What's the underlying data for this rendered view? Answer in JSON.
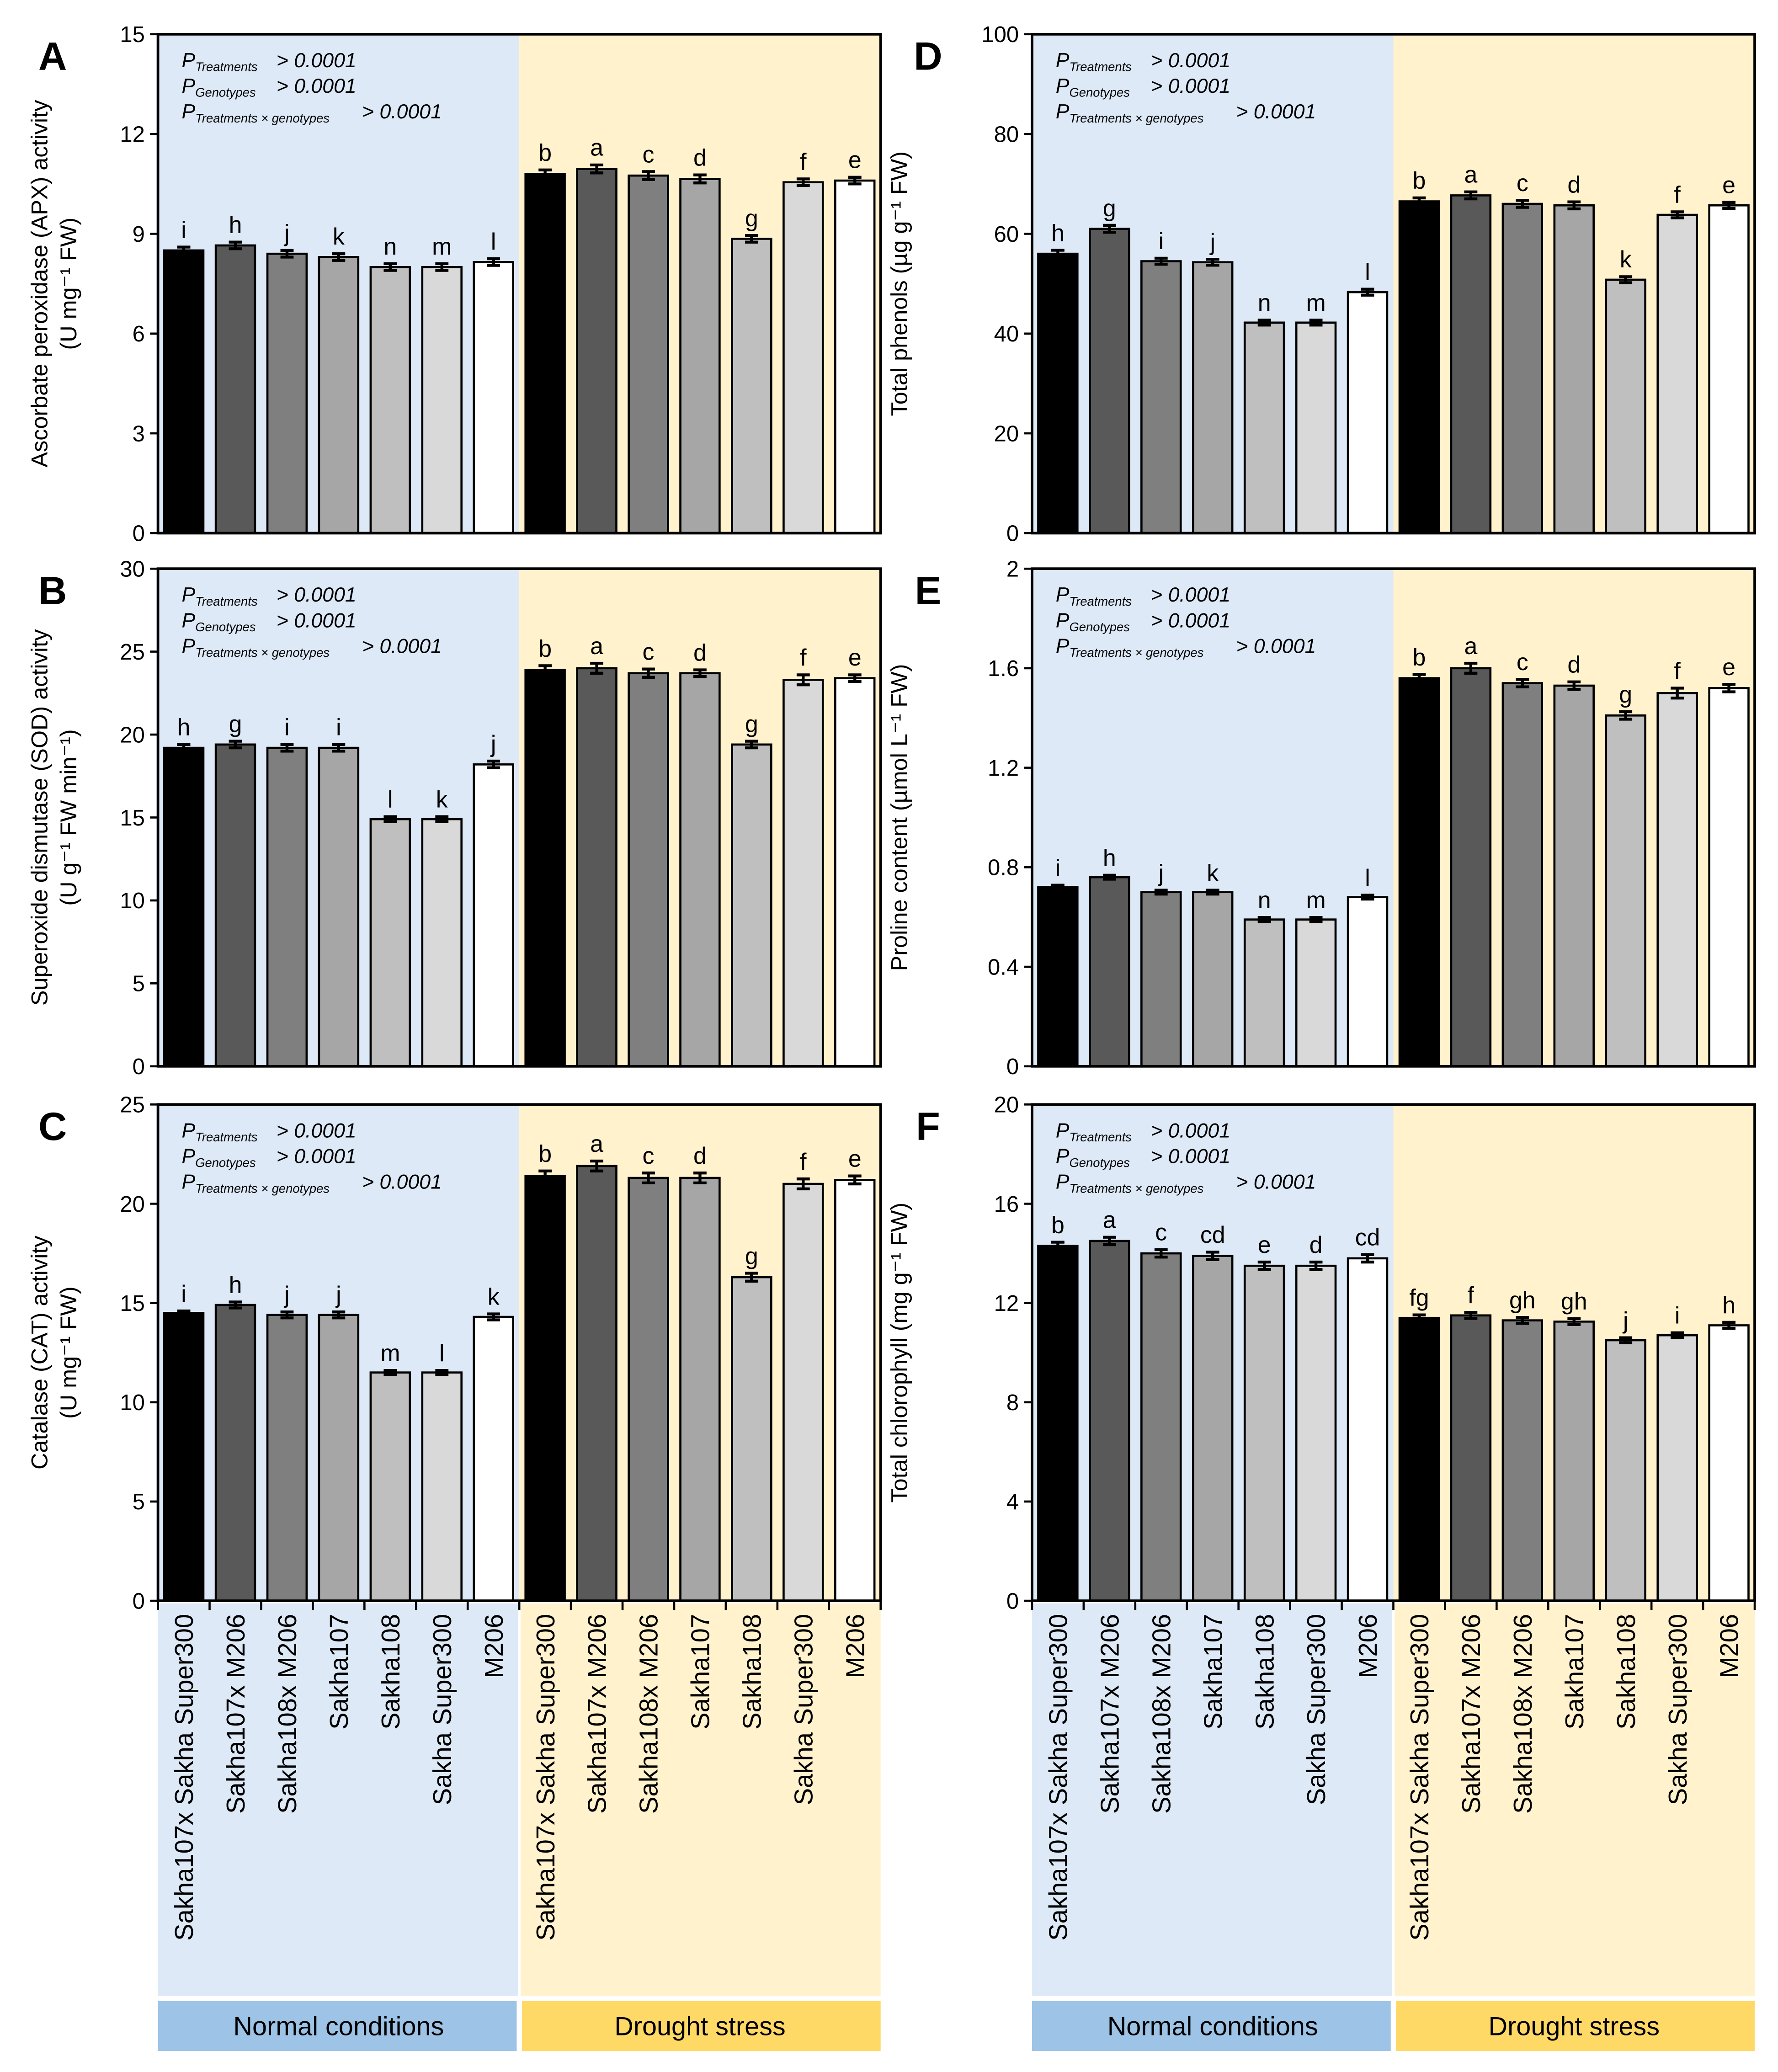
{
  "groups": {
    "normal": "Normal conditions",
    "drought": "Drought stress"
  },
  "genotypes": [
    "Sakha107x Sakha Super300",
    "Sakha107x M206",
    "Sakha108x M206",
    "Sakha107",
    "Sakha108",
    "Sakha Super300",
    "M206"
  ],
  "bar_fills": [
    "#000000",
    "#595959",
    "#7f7f7f",
    "#a6a6a6",
    "#bfbfbf",
    "#d9d9d9",
    "#ffffff"
  ],
  "background_colors": {
    "normal": "#dde9f6",
    "drought": "#fff2cc",
    "normal_band": "#9dc3e6",
    "drought_band": "#ffd966"
  },
  "stats_text": {
    "value": "> 0.0001",
    "treatments_sub": "Treatments",
    "genotypes_sub": "Genotypes",
    "interaction_sub": "Treatments  × genotypes"
  },
  "chart_data": [
    {
      "panel": "A",
      "type": "bar",
      "ylabel": [
        "Ascorbate peroxidase (APX) activity",
        "(U mg⁻¹ FW)"
      ],
      "ylim": [
        0,
        15
      ],
      "yticks": [
        0,
        3,
        6,
        9,
        12,
        15
      ],
      "series": [
        {
          "name": "Normal conditions",
          "values": [
            8.5,
            8.65,
            8.4,
            8.3,
            8.0,
            8.0,
            8.15
          ],
          "errors": [
            0.1,
            0.1,
            0.1,
            0.1,
            0.1,
            0.1,
            0.1
          ],
          "letters": [
            "i",
            "h",
            "j",
            "k",
            "n",
            "m",
            "l"
          ]
        },
        {
          "name": "Drought stress",
          "values": [
            10.8,
            10.95,
            10.75,
            10.65,
            8.85,
            10.55,
            10.6
          ],
          "errors": [
            0.12,
            0.12,
            0.12,
            0.12,
            0.1,
            0.1,
            0.1
          ],
          "letters": [
            "b",
            "a",
            "c",
            "d",
            "g",
            "f",
            "e"
          ]
        }
      ]
    },
    {
      "panel": "B",
      "type": "bar",
      "ylabel": [
        "Superoxide dismutase (SOD) activity",
        "(U g⁻¹ FW min⁻¹)"
      ],
      "ylim": [
        0,
        30
      ],
      "yticks": [
        0,
        5,
        10,
        15,
        20,
        25,
        30
      ],
      "series": [
        {
          "name": "Normal conditions",
          "values": [
            19.2,
            19.4,
            19.2,
            19.2,
            14.9,
            14.9,
            18.2
          ],
          "errors": [
            0.2,
            0.2,
            0.2,
            0.2,
            0.15,
            0.15,
            0.2
          ],
          "letters": [
            "h",
            "g",
            "i",
            "i",
            "l",
            "k",
            "j"
          ]
        },
        {
          "name": "Drought stress",
          "values": [
            23.9,
            24.0,
            23.7,
            23.7,
            19.4,
            23.3,
            23.4
          ],
          "errors": [
            0.25,
            0.3,
            0.25,
            0.2,
            0.2,
            0.3,
            0.2
          ],
          "letters": [
            "b",
            "a",
            "c",
            "d",
            "g",
            "f",
            "e"
          ]
        }
      ]
    },
    {
      "panel": "C",
      "type": "bar",
      "ylabel": [
        "Catalase (CAT) activity",
        "(U mg⁻¹ FW)"
      ],
      "ylim": [
        0,
        25
      ],
      "yticks": [
        0,
        5,
        10,
        15,
        20,
        25
      ],
      "series": [
        {
          "name": "Normal conditions",
          "values": [
            14.5,
            14.9,
            14.4,
            14.4,
            11.5,
            11.5,
            14.3
          ],
          "errors": [
            0.1,
            0.15,
            0.15,
            0.15,
            0.1,
            0.1,
            0.15
          ],
          "letters": [
            "i",
            "h",
            "j",
            "j",
            "m",
            "l",
            "k"
          ]
        },
        {
          "name": "Drought stress",
          "values": [
            21.4,
            21.9,
            21.3,
            21.3,
            16.3,
            21.0,
            21.2
          ],
          "errors": [
            0.25,
            0.25,
            0.25,
            0.25,
            0.2,
            0.25,
            0.2
          ],
          "letters": [
            "b",
            "a",
            "c",
            "d",
            "g",
            "f",
            "e"
          ]
        }
      ]
    },
    {
      "panel": "D",
      "type": "bar",
      "ylabel": [
        "Total phenols (µg g⁻¹ FW)"
      ],
      "ylim": [
        0,
        100
      ],
      "yticks": [
        0,
        20,
        40,
        60,
        80,
        100
      ],
      "series": [
        {
          "name": "Normal conditions",
          "values": [
            56.0,
            61.0,
            54.5,
            54.3,
            42.2,
            42.2,
            48.3
          ],
          "errors": [
            0.7,
            0.7,
            0.6,
            0.6,
            0.5,
            0.5,
            0.6
          ],
          "letters": [
            "h",
            "g",
            "i",
            "j",
            "n",
            "m",
            "l"
          ]
        },
        {
          "name": "Drought stress",
          "values": [
            66.5,
            67.7,
            66.0,
            65.7,
            50.8,
            63.8,
            65.7
          ],
          "errors": [
            0.7,
            0.7,
            0.7,
            0.7,
            0.6,
            0.6,
            0.6
          ],
          "letters": [
            "b",
            "a",
            "c",
            "d",
            "k",
            "f",
            "e"
          ]
        }
      ]
    },
    {
      "panel": "E",
      "type": "bar",
      "ylabel": [
        "Proline content (µmol L⁻¹ FW)"
      ],
      "ylim": [
        0,
        2
      ],
      "yticks": [
        0,
        0.4,
        0.8,
        1.2,
        1.6,
        2
      ],
      "series": [
        {
          "name": "Normal conditions",
          "values": [
            0.72,
            0.76,
            0.7,
            0.7,
            0.59,
            0.59,
            0.68
          ],
          "errors": [
            0.008,
            0.008,
            0.008,
            0.008,
            0.008,
            0.008,
            0.008
          ],
          "letters": [
            "i",
            "h",
            "j",
            "k",
            "n",
            "m",
            "l"
          ]
        },
        {
          "name": "Drought stress",
          "values": [
            1.56,
            1.6,
            1.54,
            1.53,
            1.41,
            1.5,
            1.52
          ],
          "errors": [
            0.015,
            0.02,
            0.015,
            0.015,
            0.015,
            0.02,
            0.015
          ],
          "letters": [
            "b",
            "a",
            "c",
            "d",
            "g",
            "f",
            "e"
          ]
        }
      ]
    },
    {
      "panel": "F",
      "type": "bar",
      "ylabel": [
        "Total chlorophyll (mg g⁻¹ FW)"
      ],
      "ylim": [
        0,
        20
      ],
      "yticks": [
        0,
        4,
        8,
        12,
        16,
        20
      ],
      "series": [
        {
          "name": "Normal conditions",
          "values": [
            14.3,
            14.5,
            14.0,
            13.9,
            13.5,
            13.5,
            13.8
          ],
          "errors": [
            0.15,
            0.15,
            0.15,
            0.15,
            0.15,
            0.15,
            0.15
          ],
          "letters": [
            "b",
            "a",
            "c",
            "cd",
            "e",
            "d",
            "cd"
          ]
        },
        {
          "name": "Drought stress",
          "values": [
            11.4,
            11.5,
            11.3,
            11.25,
            10.5,
            10.7,
            11.1
          ],
          "errors": [
            0.12,
            0.12,
            0.12,
            0.12,
            0.1,
            0.1,
            0.12
          ],
          "letters": [
            "fg",
            "f",
            "gh",
            "gh",
            "j",
            "i",
            "h"
          ]
        }
      ]
    }
  ]
}
